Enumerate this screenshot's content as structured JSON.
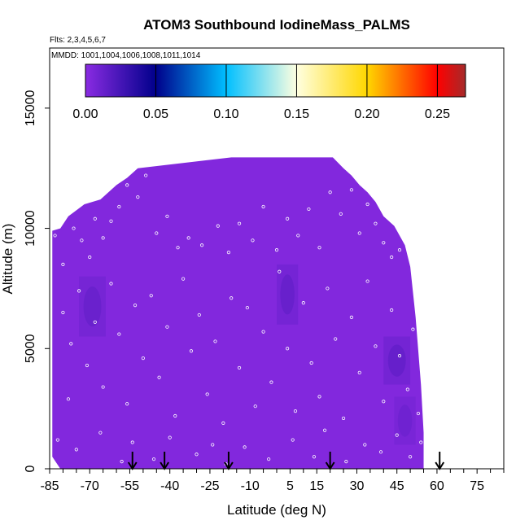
{
  "chart_data": {
    "type": "heatmap",
    "title": "ATOM3 Southbound IodineMass_PALMS",
    "flights_label": "Flts: 2,3,4,5,6,7",
    "dates_label": "MMDD: 1001,1004,1006,1008,1011,1014",
    "xlabel": "Latitude (deg N)",
    "ylabel": "Altitude (m)",
    "xlim": [
      -85,
      85
    ],
    "ylim": [
      0,
      17500
    ],
    "x_ticks": [
      -85,
      -70,
      -55,
      -40,
      -25,
      -10,
      5,
      15,
      30,
      45,
      60,
      75
    ],
    "x_tick_labels": [
      "-85",
      "-70",
      "-55",
      "-40",
      "-25",
      "-10",
      "5",
      "15",
      "30",
      "45",
      "60",
      "75"
    ],
    "x_minor_ticks": [
      -80,
      -75,
      -65,
      -60,
      -50,
      -45,
      -35,
      -30,
      -20,
      -15,
      -5,
      0,
      10,
      20,
      25,
      35,
      40,
      50,
      55,
      65,
      70,
      80,
      85
    ],
    "y_ticks": [
      0,
      5000,
      10000,
      15000
    ],
    "y_tick_labels": [
      "0",
      "5000",
      "10000",
      "15000"
    ],
    "colorbar": {
      "min": 0,
      "max": 0.27,
      "ticks": [
        0.0,
        0.05,
        0.1,
        0.15,
        0.2,
        0.25
      ],
      "tick_labels": [
        "0.00",
        "0.05",
        "0.10",
        "0.15",
        "0.20",
        "0.25"
      ],
      "stops": [
        {
          "v": 0.0,
          "color": "#8a2be2"
        },
        {
          "v": 0.05,
          "color": "#00008b"
        },
        {
          "v": 0.1,
          "color": "#00bfff"
        },
        {
          "v": 0.15,
          "color": "#ffffe0"
        },
        {
          "v": 0.2,
          "color": "#ffd700"
        },
        {
          "v": 0.25,
          "color": "#ff0000"
        },
        {
          "v": 0.27,
          "color": "#a52a2a"
        }
      ]
    },
    "envelope": [
      {
        "lat": -84,
        "top": 9900
      },
      {
        "lat": -81,
        "top": 10000
      },
      {
        "lat": -78,
        "top": 10500
      },
      {
        "lat": -72,
        "top": 11000
      },
      {
        "lat": -66,
        "top": 11200
      },
      {
        "lat": -60,
        "top": 11800
      },
      {
        "lat": -56,
        "top": 12100
      },
      {
        "lat": -52,
        "top": 12500
      },
      {
        "lat": -17,
        "top": 12950
      },
      {
        "lat": 21,
        "top": 12950
      },
      {
        "lat": 25,
        "top": 12500
      },
      {
        "lat": 28,
        "top": 12200
      },
      {
        "lat": 31,
        "top": 11800
      },
      {
        "lat": 34,
        "top": 11500
      },
      {
        "lat": 37,
        "top": 11100
      },
      {
        "lat": 40,
        "top": 10500
      },
      {
        "lat": 44,
        "top": 10100
      },
      {
        "lat": 48,
        "top": 9300
      },
      {
        "lat": 50,
        "top": 8400
      },
      {
        "lat": 52,
        "top": 6300
      },
      {
        "lat": 53,
        "top": 4900
      },
      {
        "lat": 54,
        "top": 3500
      },
      {
        "lat": 55,
        "top": 1500
      }
    ],
    "envelope_floor": [
      {
        "lat": -84,
        "bottom": 500
      },
      {
        "lat": -81,
        "bottom": 0
      },
      {
        "lat": 55,
        "bottom": 0
      }
    ],
    "background_value": 0.003,
    "enhanced_regions": [
      {
        "lat_min": -74,
        "lat_max": -64,
        "alt_min": 5500,
        "alt_max": 8000,
        "value": 0.012
      },
      {
        "lat_min": 0,
        "lat_max": 8,
        "alt_min": 6000,
        "alt_max": 8500,
        "value": 0.013
      },
      {
        "lat_min": 40,
        "lat_max": 50,
        "alt_min": 3500,
        "alt_max": 5500,
        "value": 0.014
      },
      {
        "lat_min": 44,
        "lat_max": 52,
        "alt_min": 1000,
        "alt_max": 3000,
        "value": 0.01
      }
    ],
    "arrows_lat": [
      -54,
      -42,
      -18,
      20,
      61
    ],
    "samples": [
      {
        "lat": -83,
        "alt": 9700
      },
      {
        "lat": -80,
        "alt": 8500
      },
      {
        "lat": -76,
        "alt": 10000
      },
      {
        "lat": -73,
        "alt": 9500
      },
      {
        "lat": -70,
        "alt": 8800
      },
      {
        "lat": -68,
        "alt": 10400
      },
      {
        "lat": -65,
        "alt": 9600
      },
      {
        "lat": -62,
        "alt": 10300
      },
      {
        "lat": -59,
        "alt": 10900
      },
      {
        "lat": -56,
        "alt": 11800
      },
      {
        "lat": -52,
        "alt": 11300
      },
      {
        "lat": -49,
        "alt": 12200
      },
      {
        "lat": -45,
        "alt": 9800
      },
      {
        "lat": -41,
        "alt": 10500
      },
      {
        "lat": -37,
        "alt": 9200
      },
      {
        "lat": -33,
        "alt": 9600
      },
      {
        "lat": -28,
        "alt": 9300
      },
      {
        "lat": -22,
        "alt": 10100
      },
      {
        "lat": -18,
        "alt": 9000
      },
      {
        "lat": -14,
        "alt": 10200
      },
      {
        "lat": -9,
        "alt": 9500
      },
      {
        "lat": -5,
        "alt": 10900
      },
      {
        "lat": 0,
        "alt": 9100
      },
      {
        "lat": 4,
        "alt": 10400
      },
      {
        "lat": 8,
        "alt": 9700
      },
      {
        "lat": 12,
        "alt": 10800
      },
      {
        "lat": 16,
        "alt": 9200
      },
      {
        "lat": 20,
        "alt": 11500
      },
      {
        "lat": 24,
        "alt": 10600
      },
      {
        "lat": 28,
        "alt": 11600
      },
      {
        "lat": 31,
        "alt": 9800
      },
      {
        "lat": 34,
        "alt": 11000
      },
      {
        "lat": 37,
        "alt": 10200
      },
      {
        "lat": 40,
        "alt": 9400
      },
      {
        "lat": 43,
        "alt": 8800
      },
      {
        "lat": 46,
        "alt": 9100
      },
      {
        "lat": -80,
        "alt": 6500
      },
      {
        "lat": -77,
        "alt": 5200
      },
      {
        "lat": -74,
        "alt": 7400
      },
      {
        "lat": -71,
        "alt": 4300
      },
      {
        "lat": -68,
        "alt": 6100
      },
      {
        "lat": -65,
        "alt": 3400
      },
      {
        "lat": -62,
        "alt": 7700
      },
      {
        "lat": -59,
        "alt": 5600
      },
      {
        "lat": -56,
        "alt": 2700
      },
      {
        "lat": -53,
        "alt": 6800
      },
      {
        "lat": -50,
        "alt": 4600
      },
      {
        "lat": -47,
        "alt": 7200
      },
      {
        "lat": -44,
        "alt": 3800
      },
      {
        "lat": -41,
        "alt": 5900
      },
      {
        "lat": -38,
        "alt": 2200
      },
      {
        "lat": -35,
        "alt": 7900
      },
      {
        "lat": -32,
        "alt": 4900
      },
      {
        "lat": -29,
        "alt": 6400
      },
      {
        "lat": -26,
        "alt": 3100
      },
      {
        "lat": -23,
        "alt": 5300
      },
      {
        "lat": -20,
        "alt": 1900
      },
      {
        "lat": -17,
        "alt": 7100
      },
      {
        "lat": -14,
        "alt": 4200
      },
      {
        "lat": -11,
        "alt": 6700
      },
      {
        "lat": -8,
        "alt": 2600
      },
      {
        "lat": -5,
        "alt": 5700
      },
      {
        "lat": -2,
        "alt": 3600
      },
      {
        "lat": 1,
        "alt": 8200
      },
      {
        "lat": 4,
        "alt": 5000
      },
      {
        "lat": 7,
        "alt": 2400
      },
      {
        "lat": 10,
        "alt": 6900
      },
      {
        "lat": 13,
        "alt": 4400
      },
      {
        "lat": 16,
        "alt": 3000
      },
      {
        "lat": 19,
        "alt": 7500
      },
      {
        "lat": 22,
        "alt": 5400
      },
      {
        "lat": 25,
        "alt": 2100
      },
      {
        "lat": 28,
        "alt": 6300
      },
      {
        "lat": 31,
        "alt": 4000
      },
      {
        "lat": 34,
        "alt": 7800
      },
      {
        "lat": 37,
        "alt": 5100
      },
      {
        "lat": 40,
        "alt": 2800
      },
      {
        "lat": 43,
        "alt": 6600
      },
      {
        "lat": 46,
        "alt": 4700
      },
      {
        "lat": 49,
        "alt": 3300
      },
      {
        "lat": 51,
        "alt": 5800
      },
      {
        "lat": 53,
        "alt": 2300
      },
      {
        "lat": -82,
        "alt": 1200
      },
      {
        "lat": -78,
        "alt": 2900
      },
      {
        "lat": -75,
        "alt": 800
      },
      {
        "lat": -66,
        "alt": 1500
      },
      {
        "lat": -58,
        "alt": 300
      },
      {
        "lat": -54,
        "alt": 1100
      },
      {
        "lat": -46,
        "alt": 400
      },
      {
        "lat": -40,
        "alt": 1300
      },
      {
        "lat": -30,
        "alt": 600
      },
      {
        "lat": -24,
        "alt": 1000
      },
      {
        "lat": -19,
        "alt": 200
      },
      {
        "lat": -12,
        "alt": 900
      },
      {
        "lat": -3,
        "alt": 400
      },
      {
        "lat": 6,
        "alt": 1200
      },
      {
        "lat": 14,
        "alt": 500
      },
      {
        "lat": 18,
        "alt": 1600
      },
      {
        "lat": 26,
        "alt": 300
      },
      {
        "lat": 33,
        "alt": 1000
      },
      {
        "lat": 39,
        "alt": 700
      },
      {
        "lat": 45,
        "alt": 1400
      },
      {
        "lat": 50,
        "alt": 500
      },
      {
        "lat": 54,
        "alt": 1100
      }
    ]
  }
}
